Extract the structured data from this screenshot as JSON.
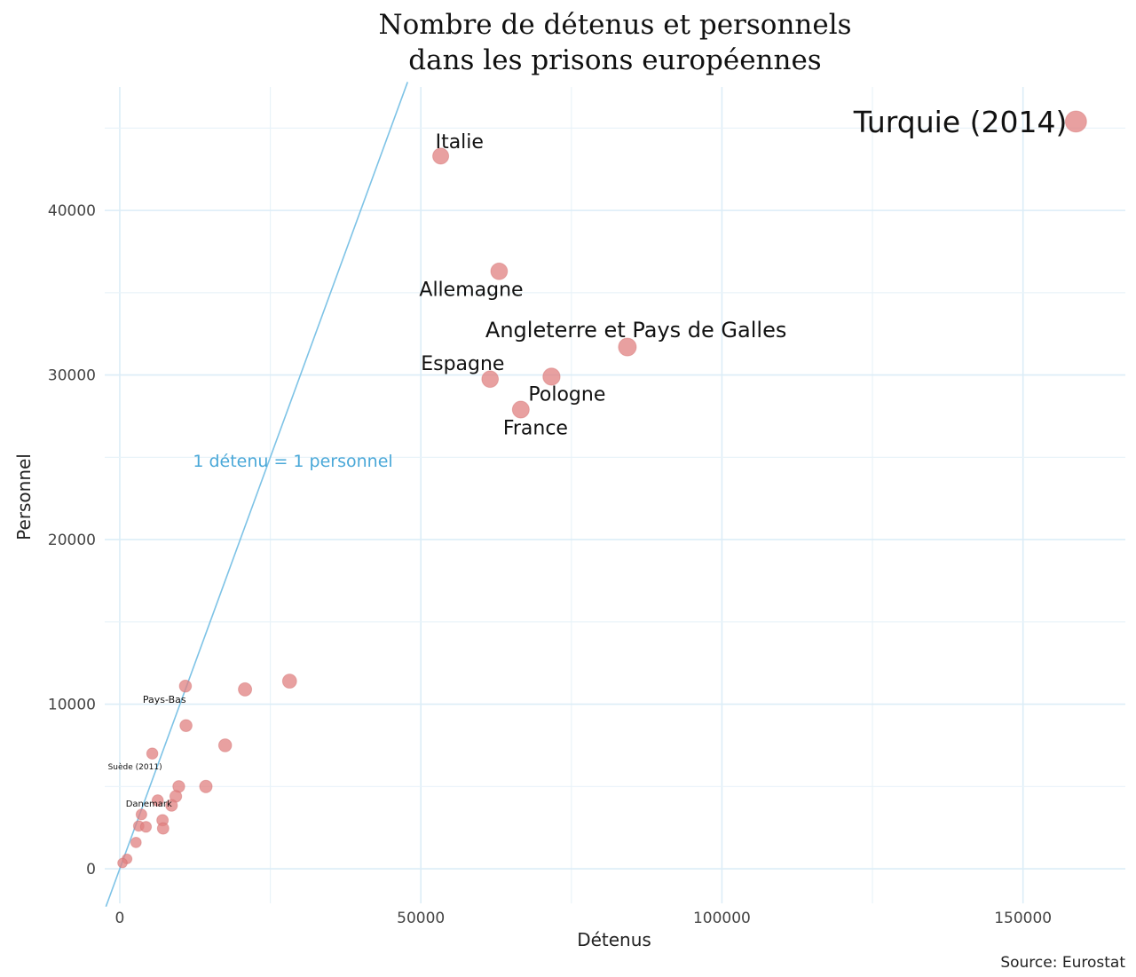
{
  "chart_data": {
    "type": "scatter",
    "title_line1": "Nombre de détenus et personnels",
    "title_line2": "dans les prisons européennes",
    "xlabel": "Détenus",
    "ylabel": "Personnel",
    "xlim": [
      -2500,
      167000
    ],
    "ylim": [
      -2100,
      47500
    ],
    "xticks": [
      0,
      50000,
      100000,
      150000
    ],
    "xtick_labels": [
      "0",
      "50000",
      "100000",
      "150000"
    ],
    "yticks": [
      0,
      10000,
      20000,
      30000,
      40000
    ],
    "ytick_labels": [
      "0",
      "10000",
      "20000",
      "30000",
      "40000"
    ],
    "grid": true,
    "source": "Source: Eurostat",
    "reference_line": {
      "label": "1 détenu = 1 personnel",
      "slope": 1,
      "color": "#7ec3e6"
    },
    "point_color": "#e08080",
    "points": [
      {
        "label": "Turquie (2014)",
        "x": 158800,
        "y": 45400
      },
      {
        "label": "Italie",
        "x": 53300,
        "y": 43300
      },
      {
        "label": "Allemagne",
        "x": 63000,
        "y": 36300
      },
      {
        "label": "Angleterre et Pays de Galles",
        "x": 84300,
        "y": 31700
      },
      {
        "label": "Espagne",
        "x": 61500,
        "y": 29750
      },
      {
        "label": "Pologne",
        "x": 71700,
        "y": 29900
      },
      {
        "label": "France",
        "x": 66600,
        "y": 27900
      },
      {
        "label": "",
        "x": 28200,
        "y": 11400
      },
      {
        "label": "",
        "x": 20800,
        "y": 10900
      },
      {
        "label": "Pays-Bas",
        "x": 10900,
        "y": 11100
      },
      {
        "label": "",
        "x": 11000,
        "y": 8700
      },
      {
        "label": "",
        "x": 17500,
        "y": 7500
      },
      {
        "label": "Suède (2011)",
        "x": 5400,
        "y": 7000
      },
      {
        "label": "",
        "x": 14300,
        "y": 5000
      },
      {
        "label": "",
        "x": 9800,
        "y": 5000
      },
      {
        "label": "",
        "x": 9300,
        "y": 4400
      },
      {
        "label": "",
        "x": 8600,
        "y": 3850
      },
      {
        "label": "Danemark",
        "x": 6300,
        "y": 4150
      },
      {
        "label": "",
        "x": 3600,
        "y": 3300
      },
      {
        "label": "",
        "x": 3150,
        "y": 2600
      },
      {
        "label": "",
        "x": 4350,
        "y": 2550
      },
      {
        "label": "",
        "x": 7100,
        "y": 2950
      },
      {
        "label": "",
        "x": 7200,
        "y": 2450
      },
      {
        "label": "",
        "x": 2700,
        "y": 1600
      },
      {
        "label": "",
        "x": 1200,
        "y": 600
      },
      {
        "label": "",
        "x": 450,
        "y": 350
      }
    ]
  }
}
